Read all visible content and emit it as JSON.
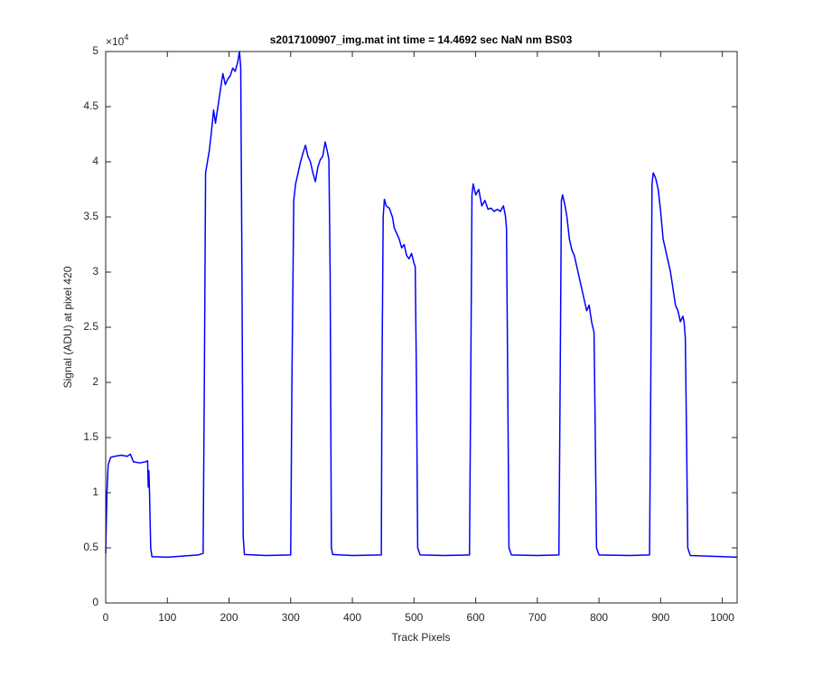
{
  "chart_data": {
    "type": "line",
    "title": "s2017100907_img.mat int time = 14.4692 sec  NaN nm BS03",
    "x_label": "Track Pixels",
    "y_label": "Signal (ADU) at pixel 420",
    "y_multiplier": {
      "base": "×10",
      "power": "4"
    },
    "color": "#0000ff",
    "xlim": [
      0,
      1024
    ],
    "ylim": [
      0,
      50000
    ],
    "xticks": [
      0,
      100,
      200,
      300,
      400,
      500,
      600,
      700,
      800,
      900,
      1000
    ],
    "yticks": [
      0,
      {
        "value": 5000,
        "label": "0.5"
      },
      {
        "value": 10000,
        "label": "1"
      },
      {
        "value": 15000,
        "label": "1.5"
      },
      {
        "value": 20000,
        "label": "2"
      },
      {
        "value": 25000,
        "label": "2.5"
      },
      {
        "value": 30000,
        "label": "3"
      },
      {
        "value": 35000,
        "label": "3.5"
      },
      {
        "value": 40000,
        "label": "4"
      },
      {
        "value": 45000,
        "label": "4.5"
      },
      {
        "value": 50000,
        "label": "5"
      }
    ],
    "x": [
      0,
      2,
      4,
      8,
      15,
      25,
      35,
      40,
      45,
      55,
      65,
      68,
      69,
      70,
      71,
      73,
      75,
      100,
      150,
      158,
      160,
      162,
      165,
      168,
      172,
      175,
      178,
      182,
      186,
      190,
      194,
      198,
      202,
      206,
      210,
      214,
      217,
      219,
      221,
      223,
      225,
      260,
      300,
      302,
      305,
      308,
      312,
      316,
      320,
      324,
      328,
      332,
      336,
      340,
      344,
      348,
      352,
      356,
      360,
      362,
      364,
      366,
      368,
      400,
      447,
      448,
      450,
      452,
      455,
      460,
      465,
      468,
      472,
      476,
      480,
      484,
      488,
      492,
      496,
      500,
      502,
      504,
      506,
      510,
      550,
      590,
      592,
      594,
      596,
      600,
      605,
      610,
      615,
      620,
      625,
      630,
      635,
      640,
      645,
      648,
      650,
      652,
      654,
      658,
      700,
      735,
      737,
      739,
      741,
      745,
      748,
      752,
      756,
      760,
      764,
      768,
      772,
      776,
      780,
      784,
      788,
      790,
      792,
      794,
      796,
      800,
      850,
      882,
      884,
      886,
      888,
      892,
      896,
      900,
      904,
      908,
      912,
      916,
      920,
      924,
      928,
      932,
      936,
      938,
      940,
      942,
      944,
      948,
      1000,
      1024
    ],
    "values": [
      4500,
      10000,
      12500,
      13200,
      13300,
      13400,
      13300,
      13500,
      12800,
      12700,
      12800,
      12900,
      10500,
      12000,
      10200,
      5000,
      4200,
      4150,
      4350,
      4500,
      20000,
      39000,
      40000,
      41000,
      43000,
      44700,
      43500,
      45000,
      46500,
      48000,
      47000,
      47500,
      47800,
      48500,
      48200,
      49000,
      50000,
      48500,
      30000,
      6000,
      4400,
      4300,
      4350,
      20000,
      36500,
      38000,
      39000,
      40000,
      40800,
      41500,
      40500,
      40000,
      39000,
      38200,
      39500,
      40200,
      40500,
      41800,
      40800,
      40200,
      30000,
      5000,
      4400,
      4300,
      4350,
      20000,
      35000,
      36600,
      36000,
      35800,
      35000,
      34000,
      33500,
      33000,
      32200,
      32500,
      31500,
      31200,
      31700,
      30800,
      30500,
      20000,
      5000,
      4350,
      4300,
      4350,
      20000,
      37000,
      38000,
      37000,
      37500,
      36000,
      36500,
      35700,
      35800,
      35500,
      35700,
      35500,
      36000,
      35200,
      34000,
      20000,
      5000,
      4350,
      4300,
      4350,
      20000,
      36500,
      37000,
      36000,
      35000,
      33000,
      32000,
      31500,
      30500,
      29500,
      28500,
      27500,
      26500,
      27000,
      25500,
      25000,
      24500,
      15000,
      5000,
      4350,
      4300,
      4350,
      20000,
      38000,
      39000,
      38500,
      37500,
      35500,
      33000,
      32000,
      31000,
      30000,
      28500,
      27000,
      26500,
      25500,
      26000,
      25500,
      24000,
      15000,
      5000,
      4300,
      4200,
      4150
    ]
  }
}
